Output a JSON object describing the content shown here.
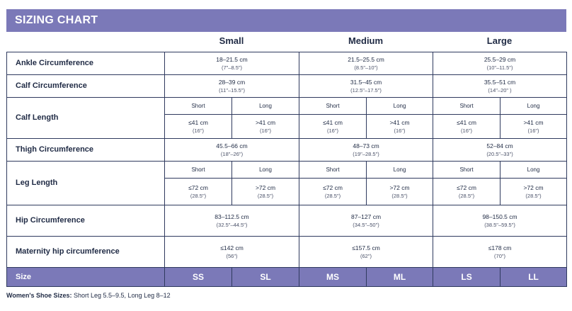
{
  "title": "SIZING CHART",
  "size_headers": [
    "Small",
    "Medium",
    "Large"
  ],
  "rows": {
    "ankle": {
      "label": "Ankle Circumference",
      "values": [
        {
          "cm": "18–21.5 cm",
          "in": "(7\"–8.5\")"
        },
        {
          "cm": "21.5–25.5 cm",
          "in": "(8.5\"–10\")"
        },
        {
          "cm": "25.5–29 cm",
          "in": "(10\"–11.5\")"
        }
      ]
    },
    "calf": {
      "label": "Calf Circumference",
      "values": [
        {
          "cm": "28–39 cm",
          "in": "(11\"–15.5\")"
        },
        {
          "cm": "31.5–45 cm",
          "in": "(12.5\"–17.5\")"
        },
        {
          "cm": "35.5–51 cm",
          "in": "(14\"–20\" )"
        }
      ]
    },
    "calf_length": {
      "label": "Calf Length",
      "sub_labels": [
        "Short",
        "Long",
        "Short",
        "Long",
        "Short",
        "Long"
      ],
      "values": [
        {
          "cm": "≤41 cm",
          "in": "(16\")"
        },
        {
          "cm": ">41 cm",
          "in": "(16\")"
        },
        {
          "cm": "≤41 cm",
          "in": "(16\")"
        },
        {
          "cm": ">41 cm",
          "in": "(16\")"
        },
        {
          "cm": "≤41 cm",
          "in": "(16\")"
        },
        {
          "cm": ">41 cm",
          "in": "(16\")"
        }
      ]
    },
    "thigh": {
      "label": "Thigh Circumference",
      "values": [
        {
          "cm": "45.5–66 cm",
          "in": "(18\"–26\")"
        },
        {
          "cm": "48–73 cm",
          "in": "(19\"–28.5\")"
        },
        {
          "cm": "52–84 cm",
          "in": "(20.5\"–33\")"
        }
      ]
    },
    "leg_length": {
      "label": "Leg Length",
      "sub_labels": [
        "Short",
        "Long",
        "Short",
        "Long",
        "Short",
        "Long"
      ],
      "values": [
        {
          "cm": "≤72 cm",
          "in": "(28.5\")"
        },
        {
          "cm": ">72 cm",
          "in": "(28.5\")"
        },
        {
          "cm": "≤72 cm",
          "in": "(28.5\")"
        },
        {
          "cm": ">72 cm",
          "in": "(28.5\")"
        },
        {
          "cm": "≤72 cm",
          "in": "(28.5\")"
        },
        {
          "cm": ">72 cm",
          "in": "(28.5\")"
        }
      ]
    },
    "hip": {
      "label": "Hip Circumference",
      "values": [
        {
          "cm": "83–112.5 cm",
          "in": "(32.5\"–44.5\")"
        },
        {
          "cm": "87–127 cm",
          "in": "(34.5\"–50\")"
        },
        {
          "cm": "98–150.5 cm",
          "in": "(38.5\"–59.5\")"
        }
      ]
    },
    "maternity": {
      "label": "Maternity hip circumference",
      "values": [
        {
          "cm": "≤142 cm",
          "in": "(56\")"
        },
        {
          "cm": "≤157.5 cm",
          "in": "(62\")"
        },
        {
          "cm": "≤178 cm",
          "in": "(70\")"
        }
      ]
    }
  },
  "size_row": {
    "label": "Size",
    "codes": [
      "SS",
      "SL",
      "MS",
      "ML",
      "LS",
      "LL"
    ]
  },
  "footnote": {
    "label": "Women's Shoe Sizes:",
    "text": " Short Leg 5.5–9.5, Long Leg 8–12"
  },
  "colors": {
    "header_band": "#7b79b8",
    "border": "#2f3a5e",
    "text": "#1f2a44"
  }
}
